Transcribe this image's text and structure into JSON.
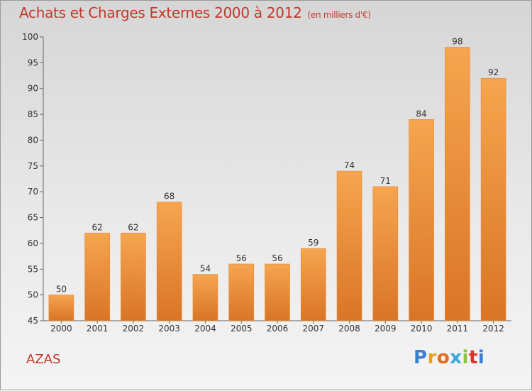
{
  "header": {
    "title": "Achats et Charges Externes 2000 à 2012",
    "unit": "(en milliers d'€)"
  },
  "footer": {
    "place": "AZAS",
    "logo_letters": [
      "P",
      "r",
      "o",
      "x",
      "i",
      "t",
      "i"
    ],
    "logo_colors": [
      "#3a7fd0",
      "#e8a21a",
      "#e46a1c",
      "#3aa6de",
      "#8cc63f",
      "#e0302a",
      "#3a7fd0"
    ]
  },
  "colors": {
    "bar_top": "#f6a54f",
    "bar_bottom": "#d97526",
    "bar_border": "#e08a3a",
    "text": "#333333",
    "accent": "#c0392b"
  },
  "chart_data": {
    "type": "bar",
    "categories": [
      "2000",
      "2001",
      "2002",
      "2003",
      "2004",
      "2005",
      "2006",
      "2007",
      "2008",
      "2009",
      "2010",
      "2011",
      "2012"
    ],
    "values": [
      50,
      62,
      62,
      68,
      54,
      56,
      56,
      59,
      74,
      71,
      84,
      98,
      92
    ],
    "data_labels": [
      "50",
      "62",
      "62",
      "68",
      "54",
      "56",
      "56",
      "59",
      "74",
      "71",
      "84",
      "98",
      "92"
    ],
    "ylim": [
      45,
      100
    ],
    "yticks": [
      45,
      50,
      55,
      60,
      65,
      70,
      75,
      80,
      85,
      90,
      95,
      100
    ],
    "ytick_labels": [
      "45",
      "50",
      "55",
      "60",
      "65",
      "70",
      "75",
      "80",
      "85",
      "90",
      "95",
      "100"
    ],
    "grid": false,
    "legend": "none"
  }
}
